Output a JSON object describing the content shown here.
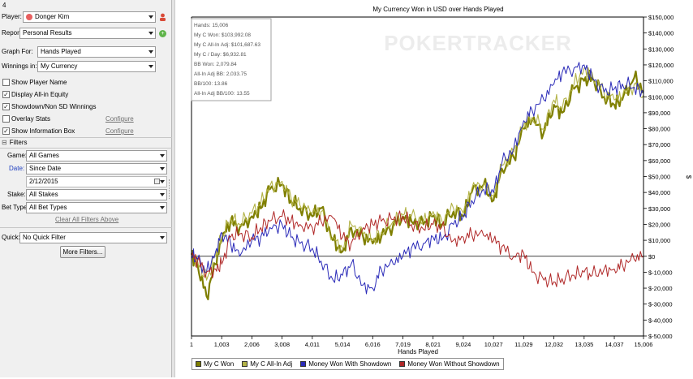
{
  "sidebar": {
    "top_marker": "4",
    "player_label": "Player:",
    "player_value": "Donger Kim",
    "report_label": "Report:",
    "report_value": "Personal Results",
    "graph_for_label": "Graph For:",
    "graph_for_value": "Hands Played",
    "winnings_label": "Winnings in:",
    "winnings_value": "My Currency",
    "options": [
      {
        "label": "Show Player Name",
        "checked": false,
        "link": ""
      },
      {
        "label": "Display All-in Equity",
        "checked": true,
        "link": ""
      },
      {
        "label": "Showdown/Non SD Winnings",
        "checked": true,
        "link": ""
      },
      {
        "label": "Overlay Stats",
        "checked": false,
        "link": "Configure"
      },
      {
        "label": "Show Information Box",
        "checked": true,
        "link": "Configure"
      }
    ],
    "filters_header": "Filters",
    "game_label": "Game:",
    "game_value": "All Games",
    "date_label": "Date:",
    "date_value": "Since Date",
    "date_input": "2/12/2015",
    "stake_label": "Stake:",
    "stake_value": "All Stakes",
    "bet_type_label": "Bet Type:",
    "bet_type_value": "All Bet Types",
    "clear_filters": "Clear All Filters Above",
    "quick_label": "Quick:",
    "quick_value": "No Quick Filter",
    "more_filters": "More Filters..."
  },
  "info_box": [
    "Hands: 15,006",
    "My C Won: $103,992.08",
    "My C All-In Adj: $101,687.63",
    "My C / Day: $6,932.81",
    "BB Won: 2,079.84",
    "All-In Adj BB: 2,033.75",
    "BB/100: 13.86",
    "All-In Adj BB/100: 13.55"
  ],
  "watermark": "POKERTRACKER",
  "chart_data": {
    "type": "line",
    "title": "My Currency Won in USD over Hands Played",
    "xlabel": "Hands Played",
    "ylabel": "$",
    "xlim": [
      1,
      15006
    ],
    "ylim": [
      -50000,
      150000
    ],
    "x_ticks": [
      1,
      1003,
      2006,
      3008,
      4011,
      5014,
      6016,
      7019,
      8021,
      9024,
      10027,
      11029,
      12032,
      13035,
      14037,
      15006
    ],
    "x_tick_labels": [
      "1",
      "1,003",
      "2,006",
      "3,008",
      "4,011",
      "5,014",
      "6,016",
      "7,019",
      "8,021",
      "9,024",
      "10,027",
      "11,029",
      "12,032",
      "13,035",
      "14,037",
      "15,006"
    ],
    "y_ticks": [
      150000,
      140000,
      130000,
      120000,
      110000,
      100000,
      90000,
      80000,
      70000,
      60000,
      50000,
      40000,
      30000,
      20000,
      10000,
      0,
      -10000,
      -20000,
      -30000,
      -40000,
      -50000
    ],
    "y_tick_labels": [
      "$150,000",
      "$140,000",
      "$130,000",
      "$120,000",
      "$110,000",
      "$100,000",
      "$90,000",
      "$80,000",
      "$70,000",
      "$60,000",
      "$50,000",
      "$40,000",
      "$30,000",
      "$20,000",
      "$10,000",
      "$0",
      "$-10,000",
      "$-20,000",
      "$-30,000",
      "$-40,000",
      "$-50,000"
    ],
    "grid": false,
    "legend_position": "bottom",
    "x": [
      1,
      200,
      500,
      800,
      1003,
      1300,
      1600,
      2006,
      2300,
      2600,
      3008,
      3300,
      3600,
      4011,
      4300,
      4700,
      5014,
      5300,
      5700,
      6016,
      6300,
      6700,
      7019,
      7300,
      7700,
      8021,
      8300,
      8700,
      9024,
      9300,
      9700,
      10027,
      10300,
      10700,
      11029,
      11300,
      11700,
      12032,
      12300,
      12700,
      13035,
      13300,
      13700,
      14037,
      14300,
      14700,
      15006
    ],
    "series": [
      {
        "name": "My C Won",
        "color": "#7f7f00",
        "width": 2.2,
        "values": [
          1000,
          -5000,
          -25000,
          -5000,
          10000,
          22000,
          18000,
          25000,
          30000,
          42000,
          45000,
          35000,
          30000,
          25000,
          30000,
          10000,
          3000,
          18000,
          12000,
          8000,
          12000,
          20000,
          25000,
          22000,
          20000,
          25000,
          20000,
          28000,
          25000,
          40000,
          45000,
          35000,
          55000,
          62000,
          80000,
          85000,
          78000,
          95000,
          90000,
          105000,
          110000,
          112000,
          100000,
          95000,
          98000,
          112000,
          104000
        ]
      },
      {
        "name": "My C All-In Adj",
        "color": "#b3b347",
        "width": 1.1,
        "values": [
          2000,
          -3000,
          -15000,
          0,
          12000,
          24000,
          20000,
          27000,
          33000,
          44000,
          47000,
          37000,
          32000,
          27000,
          28000,
          12000,
          5000,
          20000,
          14000,
          10000,
          15000,
          22000,
          26000,
          25000,
          22000,
          28000,
          23000,
          30000,
          27000,
          42000,
          46000,
          38000,
          57000,
          65000,
          82000,
          87000,
          80000,
          98000,
          92000,
          108000,
          118000,
          115000,
          102000,
          98000,
          100000,
          108000,
          101000
        ]
      },
      {
        "name": "Money Won With Showdown",
        "color": "#2a2ab8",
        "width": 1,
        "values": [
          0,
          -2000,
          -10000,
          3000,
          15000,
          8000,
          0,
          10000,
          12000,
          18000,
          20000,
          12000,
          8000,
          5000,
          -3000,
          -15000,
          -12000,
          -5000,
          -18000,
          -20000,
          -8000,
          -5000,
          0,
          5000,
          8000,
          12000,
          10000,
          20000,
          25000,
          35000,
          42000,
          40000,
          58000,
          68000,
          85000,
          92000,
          98000,
          108000,
          115000,
          118000,
          120000,
          112000,
          103000,
          105000,
          108000,
          106000,
          102000
        ]
      },
      {
        "name": "Money Won Without Showdown",
        "color": "#b02828",
        "width": 1,
        "values": [
          0,
          -3000,
          -10000,
          -8000,
          -5000,
          12000,
          14000,
          12000,
          18000,
          22000,
          25000,
          22000,
          20000,
          18000,
          22000,
          24000,
          12000,
          8000,
          18000,
          20000,
          22000,
          23000,
          25000,
          20000,
          17000,
          20000,
          18000,
          10000,
          12000,
          14000,
          13000,
          10000,
          6000,
          0,
          2000,
          -10000,
          -15000,
          -16000,
          -14000,
          -12000,
          -10000,
          -12000,
          -8000,
          -8000,
          -5000,
          -2000,
          0
        ]
      }
    ]
  }
}
